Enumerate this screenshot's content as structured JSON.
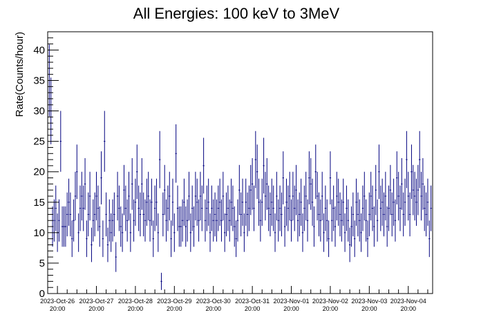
{
  "chart_data": {
    "type": "scatter",
    "title": "All Energies:  100 keV to 3MeV",
    "xlabel": "",
    "ylabel": "Rate(Counts/hour)",
    "ylim": [
      0,
      43
    ],
    "yticks": [
      0,
      5,
      10,
      15,
      20,
      25,
      30,
      35,
      40
    ],
    "x_ticks": [
      {
        "date": "2023-Oct-26",
        "time": "20:00"
      },
      {
        "date": "2023-Oct-27",
        "time": "20:00"
      },
      {
        "date": "2023-Oct-28",
        "time": "20:00"
      },
      {
        "date": "2023-Oct-29",
        "time": "20:00"
      },
      {
        "date": "2023-Oct-30",
        "time": "20:00"
      },
      {
        "date": "2023-Oct-31",
        "time": "20:00"
      },
      {
        "date": "2023-Nov-01",
        "time": "20:00"
      },
      {
        "date": "2023-Nov-02",
        "time": "20:00"
      },
      {
        "date": "2023-Nov-03",
        "time": "20:00"
      },
      {
        "date": "2023-Nov-04",
        "time": "20:00"
      }
    ],
    "x_unit": "hours since 2023-Oct-26 20:00",
    "xlim": [
      -6,
      231
    ],
    "marker_color": "#00007f",
    "grid": false,
    "points": [
      [
        -5,
        35
      ],
      [
        -4,
        30
      ],
      [
        -3,
        11
      ],
      [
        -2,
        12
      ],
      [
        -1,
        14
      ],
      [
        0,
        10
      ],
      [
        1,
        12
      ],
      [
        2,
        25
      ],
      [
        3,
        11
      ],
      [
        4,
        11
      ],
      [
        5,
        11
      ],
      [
        6,
        13
      ],
      [
        7,
        15
      ],
      [
        8,
        13
      ],
      [
        9,
        9
      ],
      [
        10,
        12
      ],
      [
        11,
        16
      ],
      [
        12,
        20
      ],
      [
        13,
        10
      ],
      [
        14,
        14
      ],
      [
        15,
        16
      ],
      [
        16,
        14
      ],
      [
        17,
        18
      ],
      [
        18,
        9
      ],
      [
        19,
        13
      ],
      [
        20,
        16
      ],
      [
        21,
        8
      ],
      [
        22,
        12
      ],
      [
        23,
        13
      ],
      [
        24,
        16
      ],
      [
        25,
        14
      ],
      [
        26,
        11
      ],
      [
        27,
        19
      ],
      [
        28,
        9
      ],
      [
        29,
        25
      ],
      [
        30,
        13
      ],
      [
        31,
        8
      ],
      [
        32,
        12
      ],
      [
        33,
        10
      ],
      [
        34,
        12
      ],
      [
        35,
        13
      ],
      [
        36,
        6
      ],
      [
        37,
        16
      ],
      [
        38,
        14
      ],
      [
        39,
        11
      ],
      [
        40,
        10
      ],
      [
        41,
        17
      ],
      [
        42,
        14
      ],
      [
        43,
        12
      ],
      [
        44,
        16
      ],
      [
        45,
        10
      ],
      [
        46,
        18
      ],
      [
        47,
        12
      ],
      [
        48,
        15
      ],
      [
        49,
        20
      ],
      [
        50,
        14
      ],
      [
        51,
        13
      ],
      [
        52,
        18
      ],
      [
        53,
        13
      ],
      [
        54,
        12
      ],
      [
        55,
        15
      ],
      [
        56,
        16
      ],
      [
        57,
        12
      ],
      [
        58,
        15
      ],
      [
        59,
        9
      ],
      [
        60,
        14
      ],
      [
        61,
        15
      ],
      [
        62,
        10
      ],
      [
        63,
        22
      ],
      [
        64,
        2
      ],
      [
        65,
        13
      ],
      [
        66,
        17
      ],
      [
        67,
        12
      ],
      [
        68,
        14
      ],
      [
        69,
        16
      ],
      [
        70,
        9
      ],
      [
        71,
        15
      ],
      [
        72,
        10
      ],
      [
        73,
        23
      ],
      [
        74,
        14
      ],
      [
        75,
        11
      ],
      [
        76,
        11
      ],
      [
        77,
        12
      ],
      [
        78,
        15
      ],
      [
        79,
        11
      ],
      [
        80,
        12
      ],
      [
        81,
        16
      ],
      [
        82,
        10
      ],
      [
        83,
        14
      ],
      [
        84,
        11
      ],
      [
        85,
        16
      ],
      [
        86,
        15
      ],
      [
        87,
        12
      ],
      [
        88,
        16
      ],
      [
        89,
        14
      ],
      [
        90,
        21
      ],
      [
        91,
        12
      ],
      [
        92,
        14
      ],
      [
        93,
        15
      ],
      [
        94,
        10
      ],
      [
        95,
        14
      ],
      [
        96,
        12
      ],
      [
        97,
        13
      ],
      [
        98,
        12
      ],
      [
        99,
        14
      ],
      [
        100,
        15
      ],
      [
        101,
        12
      ],
      [
        102,
        16
      ],
      [
        103,
        10
      ],
      [
        104,
        13
      ],
      [
        105,
        14
      ],
      [
        106,
        12
      ],
      [
        107,
        15
      ],
      [
        108,
        14
      ],
      [
        109,
        11
      ],
      [
        110,
        9
      ],
      [
        111,
        12
      ],
      [
        112,
        17
      ],
      [
        113,
        13
      ],
      [
        114,
        15
      ],
      [
        115,
        10
      ],
      [
        116,
        15
      ],
      [
        117,
        13
      ],
      [
        118,
        14
      ],
      [
        119,
        17
      ],
      [
        120,
        18
      ],
      [
        121,
        14
      ],
      [
        122,
        22
      ],
      [
        123,
        20
      ],
      [
        124,
        15
      ],
      [
        125,
        12
      ],
      [
        126,
        15
      ],
      [
        127,
        21
      ],
      [
        128,
        16
      ],
      [
        129,
        18
      ],
      [
        130,
        14
      ],
      [
        131,
        13
      ],
      [
        132,
        15
      ],
      [
        133,
        14
      ],
      [
        134,
        10
      ],
      [
        135,
        16
      ],
      [
        136,
        12
      ],
      [
        137,
        14
      ],
      [
        138,
        13
      ],
      [
        139,
        19
      ],
      [
        140,
        11
      ],
      [
        141,
        15
      ],
      [
        142,
        14
      ],
      [
        143,
        16
      ],
      [
        144,
        12
      ],
      [
        145,
        16
      ],
      [
        146,
        14
      ],
      [
        147,
        17
      ],
      [
        148,
        12
      ],
      [
        149,
        13
      ],
      [
        150,
        15
      ],
      [
        151,
        10
      ],
      [
        152,
        14
      ],
      [
        153,
        16
      ],
      [
        154,
        12
      ],
      [
        155,
        19
      ],
      [
        156,
        18
      ],
      [
        157,
        15
      ],
      [
        158,
        11
      ],
      [
        159,
        20
      ],
      [
        160,
        16
      ],
      [
        161,
        13
      ],
      [
        162,
        12
      ],
      [
        163,
        16
      ],
      [
        164,
        10
      ],
      [
        165,
        14
      ],
      [
        166,
        12
      ],
      [
        167,
        9
      ],
      [
        168,
        19
      ],
      [
        169,
        12
      ],
      [
        170,
        14
      ],
      [
        171,
        11
      ],
      [
        172,
        16
      ],
      [
        173,
        15
      ],
      [
        174,
        13
      ],
      [
        175,
        12
      ],
      [
        176,
        15
      ],
      [
        177,
        10
      ],
      [
        178,
        14
      ],
      [
        179,
        12
      ],
      [
        180,
        8
      ],
      [
        181,
        11
      ],
      [
        182,
        13
      ],
      [
        183,
        9
      ],
      [
        184,
        15
      ],
      [
        185,
        13
      ],
      [
        186,
        12
      ],
      [
        187,
        10
      ],
      [
        188,
        14
      ],
      [
        189,
        16
      ],
      [
        190,
        12
      ],
      [
        191,
        9
      ],
      [
        192,
        13
      ],
      [
        193,
        16
      ],
      [
        194,
        14
      ],
      [
        195,
        11
      ],
      [
        196,
        17
      ],
      [
        197,
        12
      ],
      [
        198,
        20
      ],
      [
        199,
        14
      ],
      [
        200,
        15
      ],
      [
        201,
        13
      ],
      [
        202,
        16
      ],
      [
        203,
        11
      ],
      [
        204,
        14
      ],
      [
        205,
        17
      ],
      [
        206,
        13
      ],
      [
        207,
        15
      ],
      [
        208,
        12
      ],
      [
        209,
        19
      ],
      [
        210,
        16
      ],
      [
        211,
        14
      ],
      [
        212,
        18
      ],
      [
        213,
        13
      ],
      [
        214,
        15
      ],
      [
        215,
        22
      ],
      [
        216,
        16
      ],
      [
        217,
        13
      ],
      [
        218,
        20
      ],
      [
        219,
        17
      ],
      [
        220,
        16
      ],
      [
        221,
        15
      ],
      [
        222,
        17
      ],
      [
        223,
        22
      ],
      [
        224,
        16
      ],
      [
        225,
        18
      ],
      [
        226,
        14
      ],
      [
        227,
        13
      ],
      [
        228,
        15
      ],
      [
        229,
        9
      ],
      [
        230,
        14
      ]
    ]
  }
}
